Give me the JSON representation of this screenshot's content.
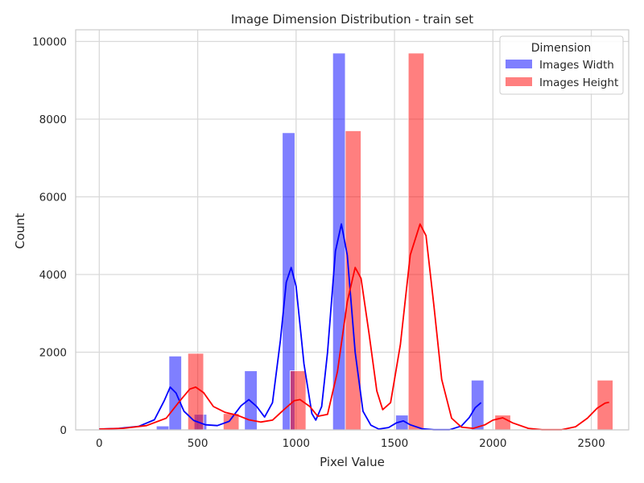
{
  "chart_data": {
    "type": "histogram",
    "title": "Image Dimension Distribution - train set",
    "xlabel": "Pixel Value",
    "ylabel": "Count",
    "xlim": [
      -120,
      2690
    ],
    "ylim": [
      0,
      10300
    ],
    "xticks": [
      0,
      500,
      1000,
      1500,
      2000,
      2500
    ],
    "yticks": [
      0,
      2000,
      4000,
      6000,
      8000,
      10000
    ],
    "grid": true,
    "legend": {
      "title": "Dimension",
      "position": "top-right"
    },
    "bin_width": 64,
    "series": [
      {
        "name": "Images Width",
        "color": "#0000ff",
        "bins": [
          {
            "x0": 290,
            "x1": 354,
            "count": 100
          },
          {
            "x0": 354,
            "x1": 418,
            "count": 1900
          },
          {
            "x0": 482,
            "x1": 546,
            "count": 400
          },
          {
            "x0": 738,
            "x1": 802,
            "count": 1520
          },
          {
            "x0": 930,
            "x1": 994,
            "count": 7650
          },
          {
            "x0": 1186,
            "x1": 1250,
            "count": 9700
          },
          {
            "x0": 1506,
            "x1": 1570,
            "count": 380
          },
          {
            "x0": 1890,
            "x1": 1954,
            "count": 1280
          }
        ],
        "kde": [
          [
            0,
            20
          ],
          [
            100,
            40
          ],
          [
            200,
            90
          ],
          [
            280,
            260
          ],
          [
            330,
            750
          ],
          [
            360,
            1100
          ],
          [
            390,
            950
          ],
          [
            430,
            480
          ],
          [
            480,
            240
          ],
          [
            540,
            130
          ],
          [
            600,
            110
          ],
          [
            660,
            220
          ],
          [
            720,
            620
          ],
          [
            760,
            780
          ],
          [
            800,
            600
          ],
          [
            840,
            330
          ],
          [
            880,
            700
          ],
          [
            920,
            2300
          ],
          [
            950,
            3800
          ],
          [
            975,
            4180
          ],
          [
            1000,
            3700
          ],
          [
            1040,
            1700
          ],
          [
            1080,
            420
          ],
          [
            1100,
            250
          ],
          [
            1130,
            600
          ],
          [
            1160,
            2000
          ],
          [
            1200,
            4600
          ],
          [
            1230,
            5300
          ],
          [
            1260,
            4500
          ],
          [
            1300,
            2000
          ],
          [
            1340,
            480
          ],
          [
            1380,
            120
          ],
          [
            1420,
            20
          ],
          [
            1470,
            60
          ],
          [
            1510,
            180
          ],
          [
            1545,
            230
          ],
          [
            1580,
            130
          ],
          [
            1640,
            30
          ],
          [
            1700,
            5
          ],
          [
            1780,
            5
          ],
          [
            1840,
            100
          ],
          [
            1880,
            320
          ],
          [
            1910,
            570
          ],
          [
            1940,
            700
          ]
        ]
      },
      {
        "name": "Images Height",
        "color": "#ff0000",
        "bins": [
          {
            "x0": 450,
            "x1": 530,
            "count": 1970
          },
          {
            "x0": 630,
            "x1": 710,
            "count": 420
          },
          {
            "x0": 970,
            "x1": 1050,
            "count": 1520
          },
          {
            "x0": 1250,
            "x1": 1330,
            "count": 7700
          },
          {
            "x0": 1570,
            "x1": 1650,
            "count": 9700
          },
          {
            "x0": 2010,
            "x1": 2090,
            "count": 380
          },
          {
            "x0": 2530,
            "x1": 2610,
            "count": 1280
          }
        ],
        "kde": [
          [
            0,
            20
          ],
          [
            120,
            40
          ],
          [
            240,
            110
          ],
          [
            340,
            300
          ],
          [
            410,
            750
          ],
          [
            460,
            1050
          ],
          [
            490,
            1100
          ],
          [
            530,
            960
          ],
          [
            580,
            600
          ],
          [
            640,
            450
          ],
          [
            700,
            380
          ],
          [
            760,
            260
          ],
          [
            820,
            200
          ],
          [
            880,
            250
          ],
          [
            940,
            530
          ],
          [
            990,
            750
          ],
          [
            1020,
            780
          ],
          [
            1070,
            600
          ],
          [
            1110,
            350
          ],
          [
            1160,
            400
          ],
          [
            1210,
            1500
          ],
          [
            1260,
            3300
          ],
          [
            1300,
            4180
          ],
          [
            1330,
            3900
          ],
          [
            1370,
            2500
          ],
          [
            1410,
            1000
          ],
          [
            1440,
            520
          ],
          [
            1480,
            700
          ],
          [
            1530,
            2200
          ],
          [
            1580,
            4500
          ],
          [
            1630,
            5300
          ],
          [
            1660,
            5000
          ],
          [
            1700,
            3200
          ],
          [
            1740,
            1300
          ],
          [
            1790,
            300
          ],
          [
            1840,
            70
          ],
          [
            1900,
            40
          ],
          [
            1960,
            130
          ],
          [
            2000,
            250
          ],
          [
            2050,
            310
          ],
          [
            2100,
            180
          ],
          [
            2180,
            40
          ],
          [
            2250,
            5
          ],
          [
            2350,
            5
          ],
          [
            2420,
            80
          ],
          [
            2480,
            300
          ],
          [
            2530,
            560
          ],
          [
            2570,
            690
          ],
          [
            2590,
            710
          ]
        ]
      }
    ]
  }
}
